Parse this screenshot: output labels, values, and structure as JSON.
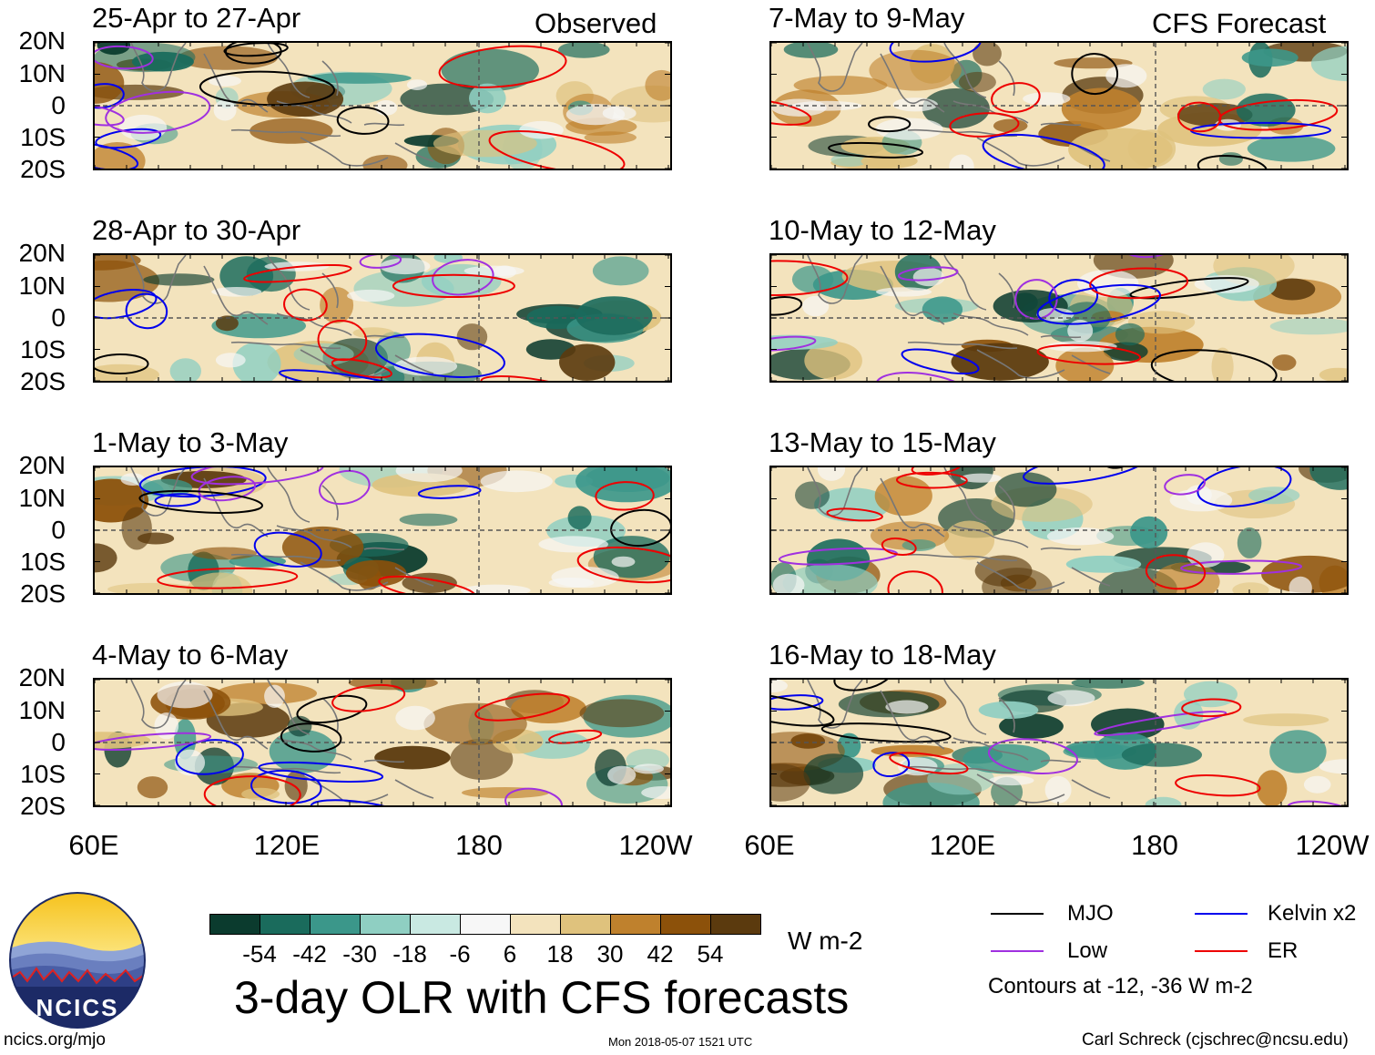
{
  "figure": {
    "title": "3-day OLR with CFS forecasts",
    "units": "W m-2",
    "column_labels": {
      "left": "Observed",
      "right": "CFS Forecast"
    },
    "lat_labels": [
      "20N",
      "10N",
      "0",
      "10S",
      "20S"
    ],
    "lon_labels": [
      "60E",
      "120E",
      "180",
      "120W"
    ],
    "footer_left": "ncics.org/mjo",
    "footer_center": "Mon 2018-05-07 1521 UTC",
    "footer_right": "Carl Schreck (cjschrec@ncsu.edu)",
    "logo_text": "NCICS"
  },
  "panels": [
    {
      "title": "25-Apr to 27-Apr",
      "column": "observed"
    },
    {
      "title": "28-Apr to 30-Apr",
      "column": "observed"
    },
    {
      "title": "1-May to 3-May",
      "column": "observed"
    },
    {
      "title": "4-May to 6-May",
      "column": "observed"
    },
    {
      "title": "7-May to 9-May",
      "column": "forecast"
    },
    {
      "title": "10-May to 12-May",
      "column": "forecast"
    },
    {
      "title": "13-May to 15-May",
      "column": "forecast"
    },
    {
      "title": "16-May to 18-May",
      "column": "forecast"
    }
  ],
  "colorbar": {
    "labels": [
      "-54",
      "-42",
      "-30",
      "-18",
      "-6",
      "6",
      "18",
      "30",
      "42",
      "54"
    ],
    "colors": [
      "#0b3b2e",
      "#1a6b5c",
      "#3b978a",
      "#8fcfc2",
      "#c9e9e2",
      "#f7f7f7",
      "#f3e3bd",
      "#dfc27d",
      "#bf812d",
      "#8c510a",
      "#5b3a0e"
    ]
  },
  "legend": {
    "items": [
      {
        "label": "MJO",
        "color": "#000000"
      },
      {
        "label": "Kelvin x2",
        "color": "#0000ee"
      },
      {
        "label": "Low",
        "color": "#a030e0"
      },
      {
        "label": "ER",
        "color": "#ee0000"
      }
    ],
    "note": "Contours at -12, -36 W m-2"
  }
}
